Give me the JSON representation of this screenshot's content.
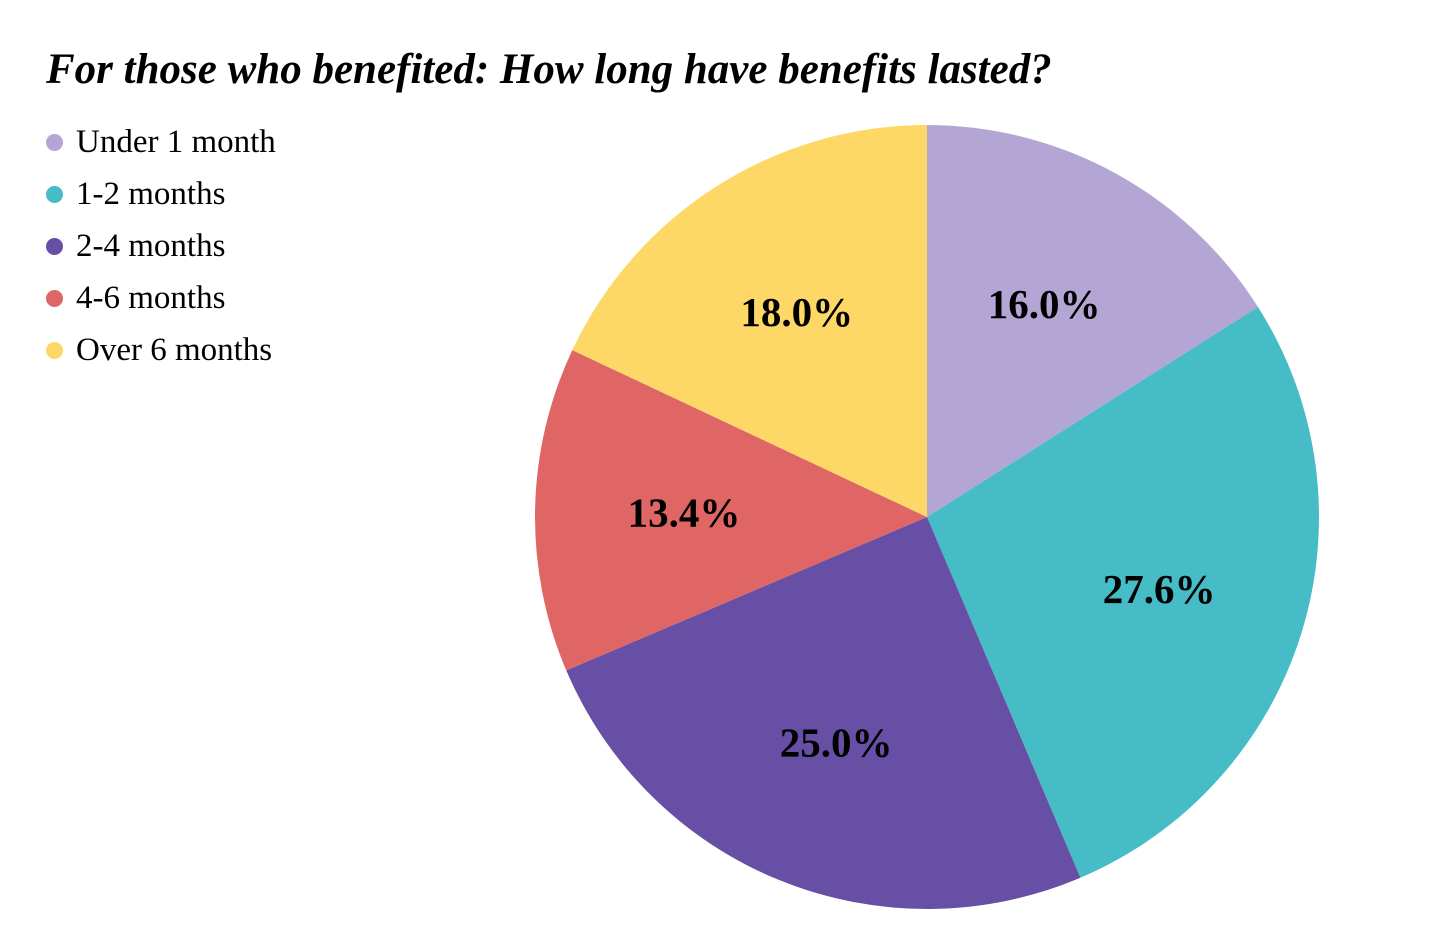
{
  "chart_data": {
    "type": "pie",
    "title": "For those who benefited: How long have benefits lasted?",
    "legend_position": "top-left",
    "slices": [
      {
        "label": "Under 1 month",
        "value": 16.0,
        "display": "16.0%",
        "color": "#B3A6D5"
      },
      {
        "label": "1-2 months",
        "value": 27.6,
        "display": "27.6%",
        "color": "#46BCC7"
      },
      {
        "label": "2-4 months",
        "value": 25.0,
        "display": "25.0%",
        "color": "#664FA5"
      },
      {
        "label": "4-6 months",
        "value": 13.4,
        "display": "13.4%",
        "color": "#E06666"
      },
      {
        "label": "Over 6 months",
        "value": 18.0,
        "display": "18.0%",
        "color": "#FDD866"
      }
    ]
  }
}
